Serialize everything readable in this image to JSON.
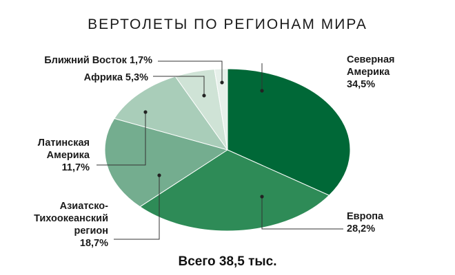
{
  "chart_data": {
    "type": "pie",
    "title": "ВЕРТОЛЕТЫ ПО РЕГИОНАМ МИРА",
    "total_label": "Всего 38,5 тыс.",
    "slices": [
      {
        "name": "Северная Америка",
        "value": 34.5,
        "label_lines": [
          "Северная",
          "Америка",
          "34,5%"
        ],
        "color": "#006837"
      },
      {
        "name": "Европа",
        "value": 28.2,
        "label_lines": [
          "Европа",
          "28,2%"
        ],
        "color": "#2e8b57"
      },
      {
        "name": "Азиатско-Тихоокеанский регион",
        "value": 18.7,
        "label_lines": [
          "Азиатско-",
          "Тихоокеанский",
          "регион",
          "18,7%"
        ],
        "color": "#74ad8f"
      },
      {
        "name": "Латинская Америка",
        "value": 11.7,
        "label_lines": [
          "Латинская",
          "Америка",
          "11,7%"
        ],
        "color": "#a9cdb9"
      },
      {
        "name": "Африка",
        "value": 5.3,
        "label_lines": [
          "Африка 5,3%"
        ],
        "color": "#cfe3d6"
      },
      {
        "name": "Ближний Восток",
        "value": 1.7,
        "label_lines": [
          "Ближний Восток 1,7%"
        ],
        "color": "#e6f0ea"
      }
    ]
  }
}
